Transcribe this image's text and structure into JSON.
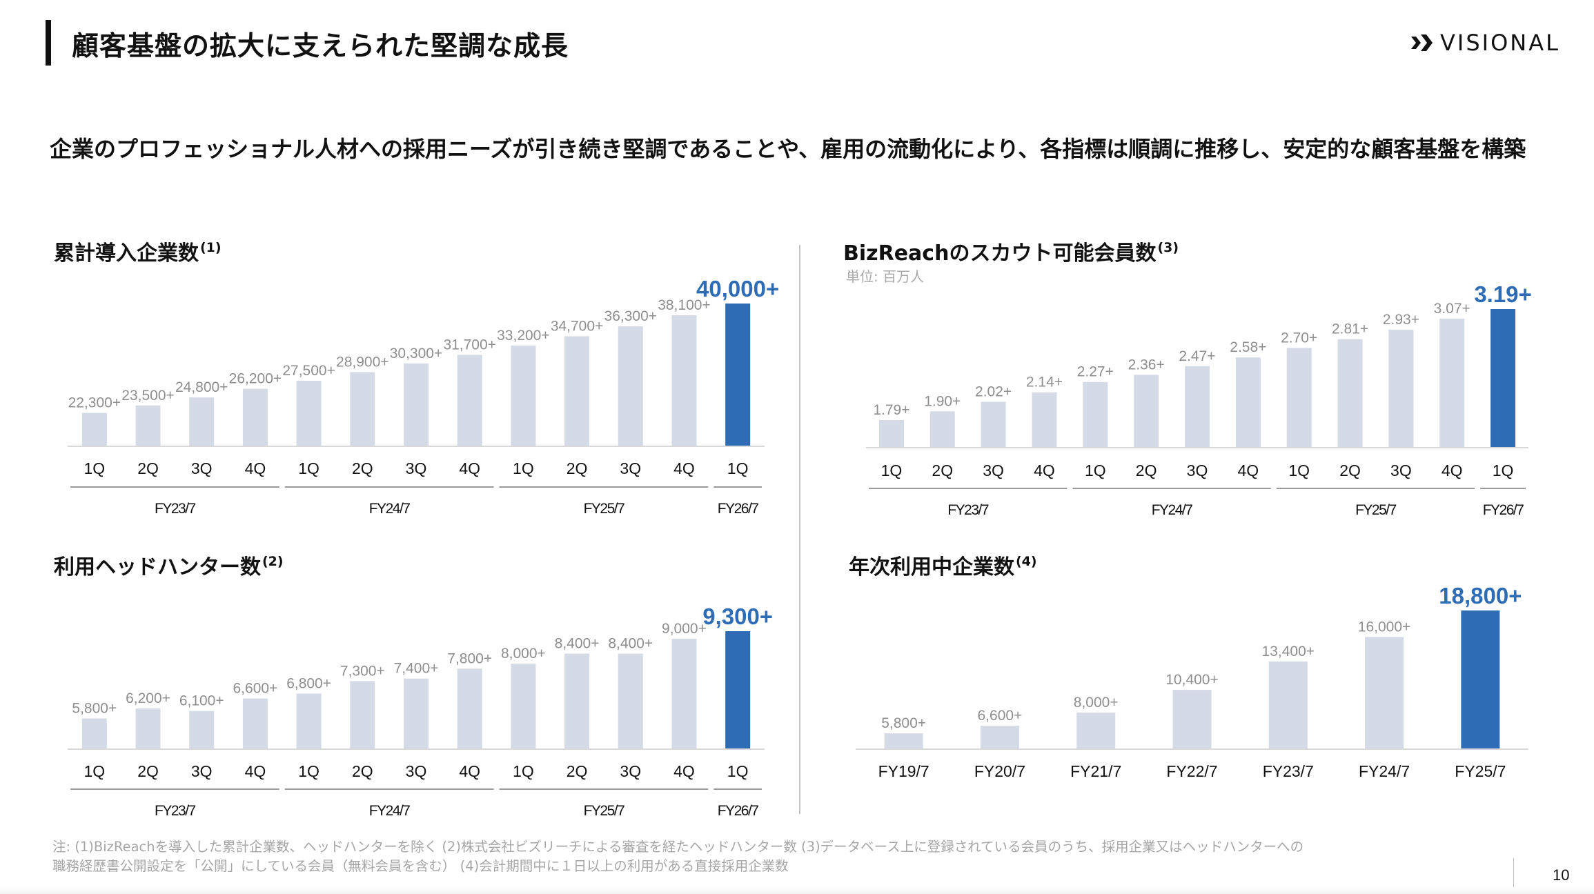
{
  "header": {
    "title": "顧客基盤の拡大に支えられた堅調な成長",
    "logo_text": "VISIONAL"
  },
  "lead": {
    "text": "企業のプロフェッショナル人材への採用ニーズが引き続き堅調であることや、雇用の流動化により、各指標は順調に推移し、安定的な顧客基盤を構築"
  },
  "colors": {
    "bar_default": "#d5dae7",
    "bar_highlight": "#2e6db5",
    "label_gray": "#8e8e8e",
    "axis_line": "#d9d9d9",
    "group_line": "#9a9a9a"
  },
  "chart_data": [
    {
      "id": "cumulative-companies",
      "type": "bar",
      "title": "累計導入企業数",
      "note_ref": "(1)",
      "unit": "",
      "categories": [
        "1Q",
        "2Q",
        "3Q",
        "4Q",
        "1Q",
        "2Q",
        "3Q",
        "4Q",
        "1Q",
        "2Q",
        "3Q",
        "4Q",
        "1Q"
      ],
      "groups": [
        {
          "label": "FY23/7",
          "count": 4
        },
        {
          "label": "FY24/7",
          "count": 4
        },
        {
          "label": "FY25/7",
          "count": 4
        },
        {
          "label": "FY26/7",
          "count": 1
        }
      ],
      "values": [
        22300,
        23500,
        24800,
        26200,
        27500,
        28900,
        30300,
        31700,
        33200,
        34700,
        36300,
        38100,
        40000
      ],
      "labels": [
        "22,300+",
        "23,500+",
        "24,800+",
        "26,200+",
        "27,500+",
        "28,900+",
        "30,300+",
        "31,700+",
        "33,200+",
        "34,700+",
        "36,300+",
        "38,100+",
        "40,000+"
      ],
      "highlight_index": 12,
      "ylim": [
        17000,
        40000
      ]
    },
    {
      "id": "scoutable-members",
      "type": "bar",
      "title": "BizReachのスカウト可能会員数",
      "note_ref": "(3)",
      "unit": "単位: 百万人",
      "categories": [
        "1Q",
        "2Q",
        "3Q",
        "4Q",
        "1Q",
        "2Q",
        "3Q",
        "4Q",
        "1Q",
        "2Q",
        "3Q",
        "4Q",
        "1Q"
      ],
      "groups": [
        {
          "label": "FY23/7",
          "count": 4
        },
        {
          "label": "FY24/7",
          "count": 4
        },
        {
          "label": "FY25/7",
          "count": 4
        },
        {
          "label": "FY26/7",
          "count": 1
        }
      ],
      "values": [
        1.79,
        1.9,
        2.02,
        2.14,
        2.27,
        2.36,
        2.47,
        2.58,
        2.7,
        2.81,
        2.93,
        3.07,
        3.19
      ],
      "labels": [
        "1.79+",
        "1.90+",
        "2.02+",
        "2.14+",
        "2.27+",
        "2.36+",
        "2.47+",
        "2.58+",
        "2.70+",
        "2.81+",
        "2.93+",
        "3.07+",
        "3.19+"
      ],
      "highlight_index": 12,
      "ylim": [
        1.45,
        3.19
      ]
    },
    {
      "id": "headhunters",
      "type": "bar",
      "title": "利用ヘッドハンター数",
      "note_ref": "(2)",
      "unit": "",
      "categories": [
        "1Q",
        "2Q",
        "3Q",
        "4Q",
        "1Q",
        "2Q",
        "3Q",
        "4Q",
        "1Q",
        "2Q",
        "3Q",
        "4Q",
        "1Q"
      ],
      "groups": [
        {
          "label": "FY23/7",
          "count": 4
        },
        {
          "label": "FY24/7",
          "count": 4
        },
        {
          "label": "FY25/7",
          "count": 4
        },
        {
          "label": "FY26/7",
          "count": 1
        }
      ],
      "values": [
        5800,
        6200,
        6100,
        6600,
        6800,
        7300,
        7400,
        7800,
        8000,
        8400,
        8400,
        9000,
        9300
      ],
      "labels": [
        "5,800+",
        "6,200+",
        "6,100+",
        "6,600+",
        "6,800+",
        "7,300+",
        "7,400+",
        "7,800+",
        "8,000+",
        "8,400+",
        "8,400+",
        "9,000+",
        "9,300+"
      ],
      "highlight_index": 12,
      "ylim": [
        4600,
        9300
      ]
    },
    {
      "id": "annual-active-companies",
      "type": "bar",
      "title": "年次利用中企業数",
      "note_ref": "(4)",
      "unit": "",
      "categories": [
        "FY19/7",
        "FY20/7",
        "FY21/7",
        "FY22/7",
        "FY23/7",
        "FY24/7",
        "FY25/7"
      ],
      "groups": [],
      "values": [
        5800,
        6600,
        8000,
        10400,
        13400,
        16000,
        18800
      ],
      "labels": [
        "5,800+",
        "6,600+",
        "8,000+",
        "10,400+",
        "13,400+",
        "16,000+",
        "18,800+"
      ],
      "highlight_index": 6,
      "ylim": [
        4200,
        18800
      ]
    }
  ],
  "footnote": {
    "line1": "注: (1)BizReachを導入した累計企業数、ヘッドハンターを除く (2)株式会社ビズリーチによる審査を経たヘッドハンター数 (3)データベース上に登録されている会員のうち、採用企業又はヘッドハンターへの",
    "line2": "職務経歴書公開設定を「公開」にしている会員（無料会員を含む） (4)会計期間中に１日以上の利用がある直接採用企業数"
  },
  "page_number": "10"
}
